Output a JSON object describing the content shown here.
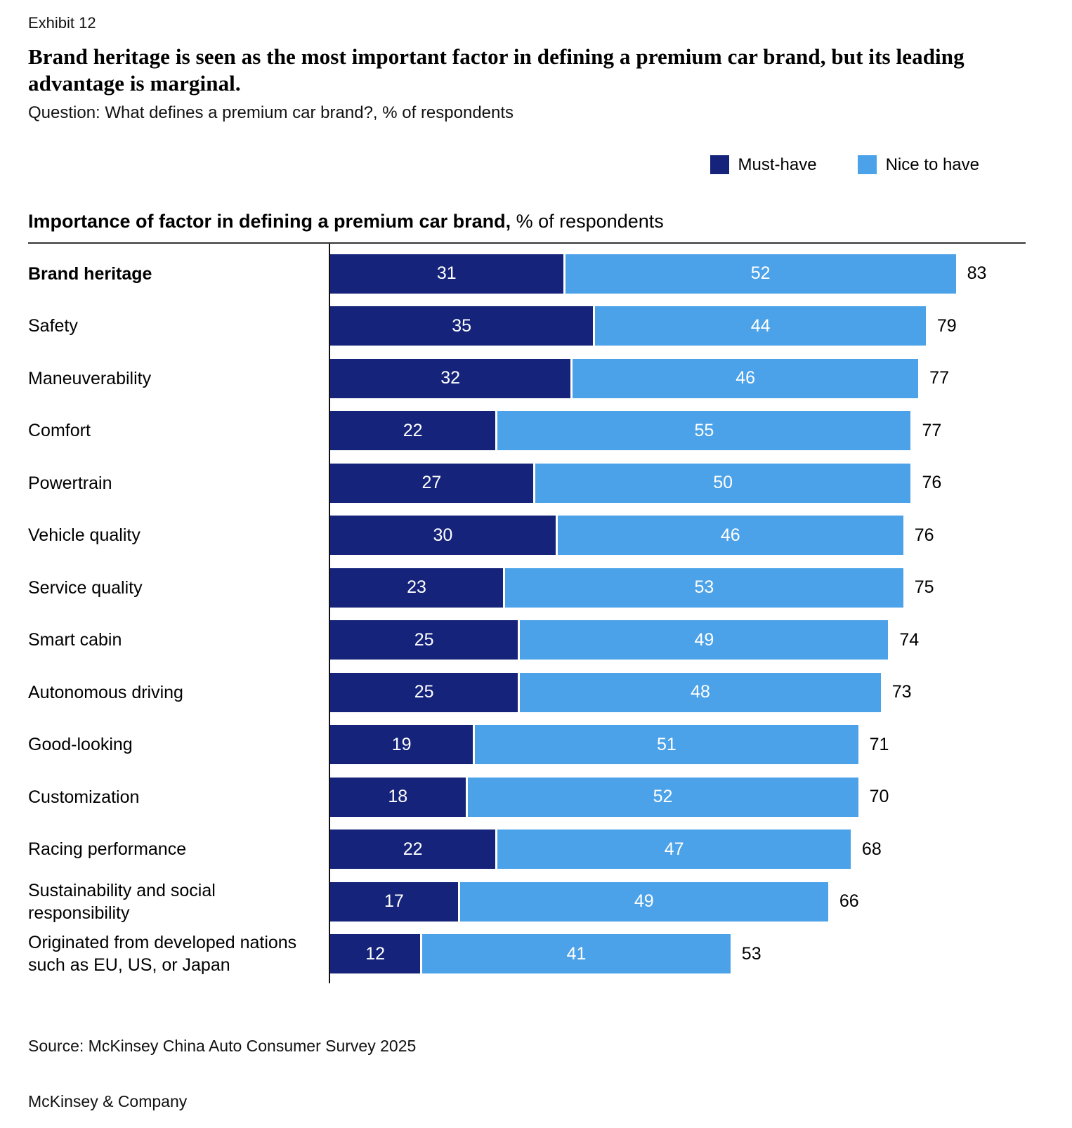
{
  "page": {
    "exhibit_label": "Exhibit 12",
    "title": "Brand heritage is seen as the most important factor in defining a premium car brand, but its leading advantage is marginal.",
    "question": "Question: What defines a premium car brand?, % of respondents"
  },
  "legend": {
    "position": "top-right",
    "items": [
      {
        "label": "Must-have",
        "color": "#15247A"
      },
      {
        "label": "Nice to have",
        "color": "#4BA2E8"
      }
    ]
  },
  "chart_heading": {
    "bold": "Importance of factor in defining a premium car brand,",
    "regular": " % of respondents"
  },
  "chart_data": {
    "type": "bar",
    "orientation": "horizontal",
    "stacked": true,
    "title": "Importance of factor in defining a premium car brand, % of respondents",
    "categories": [
      "Brand heritage",
      "Safety",
      "Maneuverability",
      "Comfort",
      "Powertrain",
      "Vehicle quality",
      "Service quality",
      "Smart cabin",
      "Autonomous driving",
      "Good-looking",
      "Customization",
      "Racing performance",
      "Sustainability and social responsibility",
      "Originated from developed nations such as EU, US, or Japan"
    ],
    "series": [
      {
        "name": "Must-have",
        "color": "#15247A",
        "values": [
          31,
          35,
          32,
          22,
          27,
          30,
          23,
          25,
          25,
          19,
          18,
          22,
          17,
          12
        ]
      },
      {
        "name": "Nice to have",
        "color": "#4BA2E8",
        "values": [
          52,
          44,
          46,
          55,
          50,
          46,
          53,
          49,
          48,
          51,
          52,
          47,
          49,
          41
        ]
      }
    ],
    "totals": [
      83,
      79,
      77,
      77,
      76,
      76,
      75,
      74,
      73,
      71,
      70,
      68,
      66,
      53
    ],
    "xlim": [
      0,
      95
    ],
    "grid": false,
    "legend_position": "top-right",
    "highlight_category": "Brand heritage"
  },
  "footer": {
    "source": "Source: McKinsey China Auto Consumer Survey 2025",
    "brand": "McKinsey & Company"
  }
}
